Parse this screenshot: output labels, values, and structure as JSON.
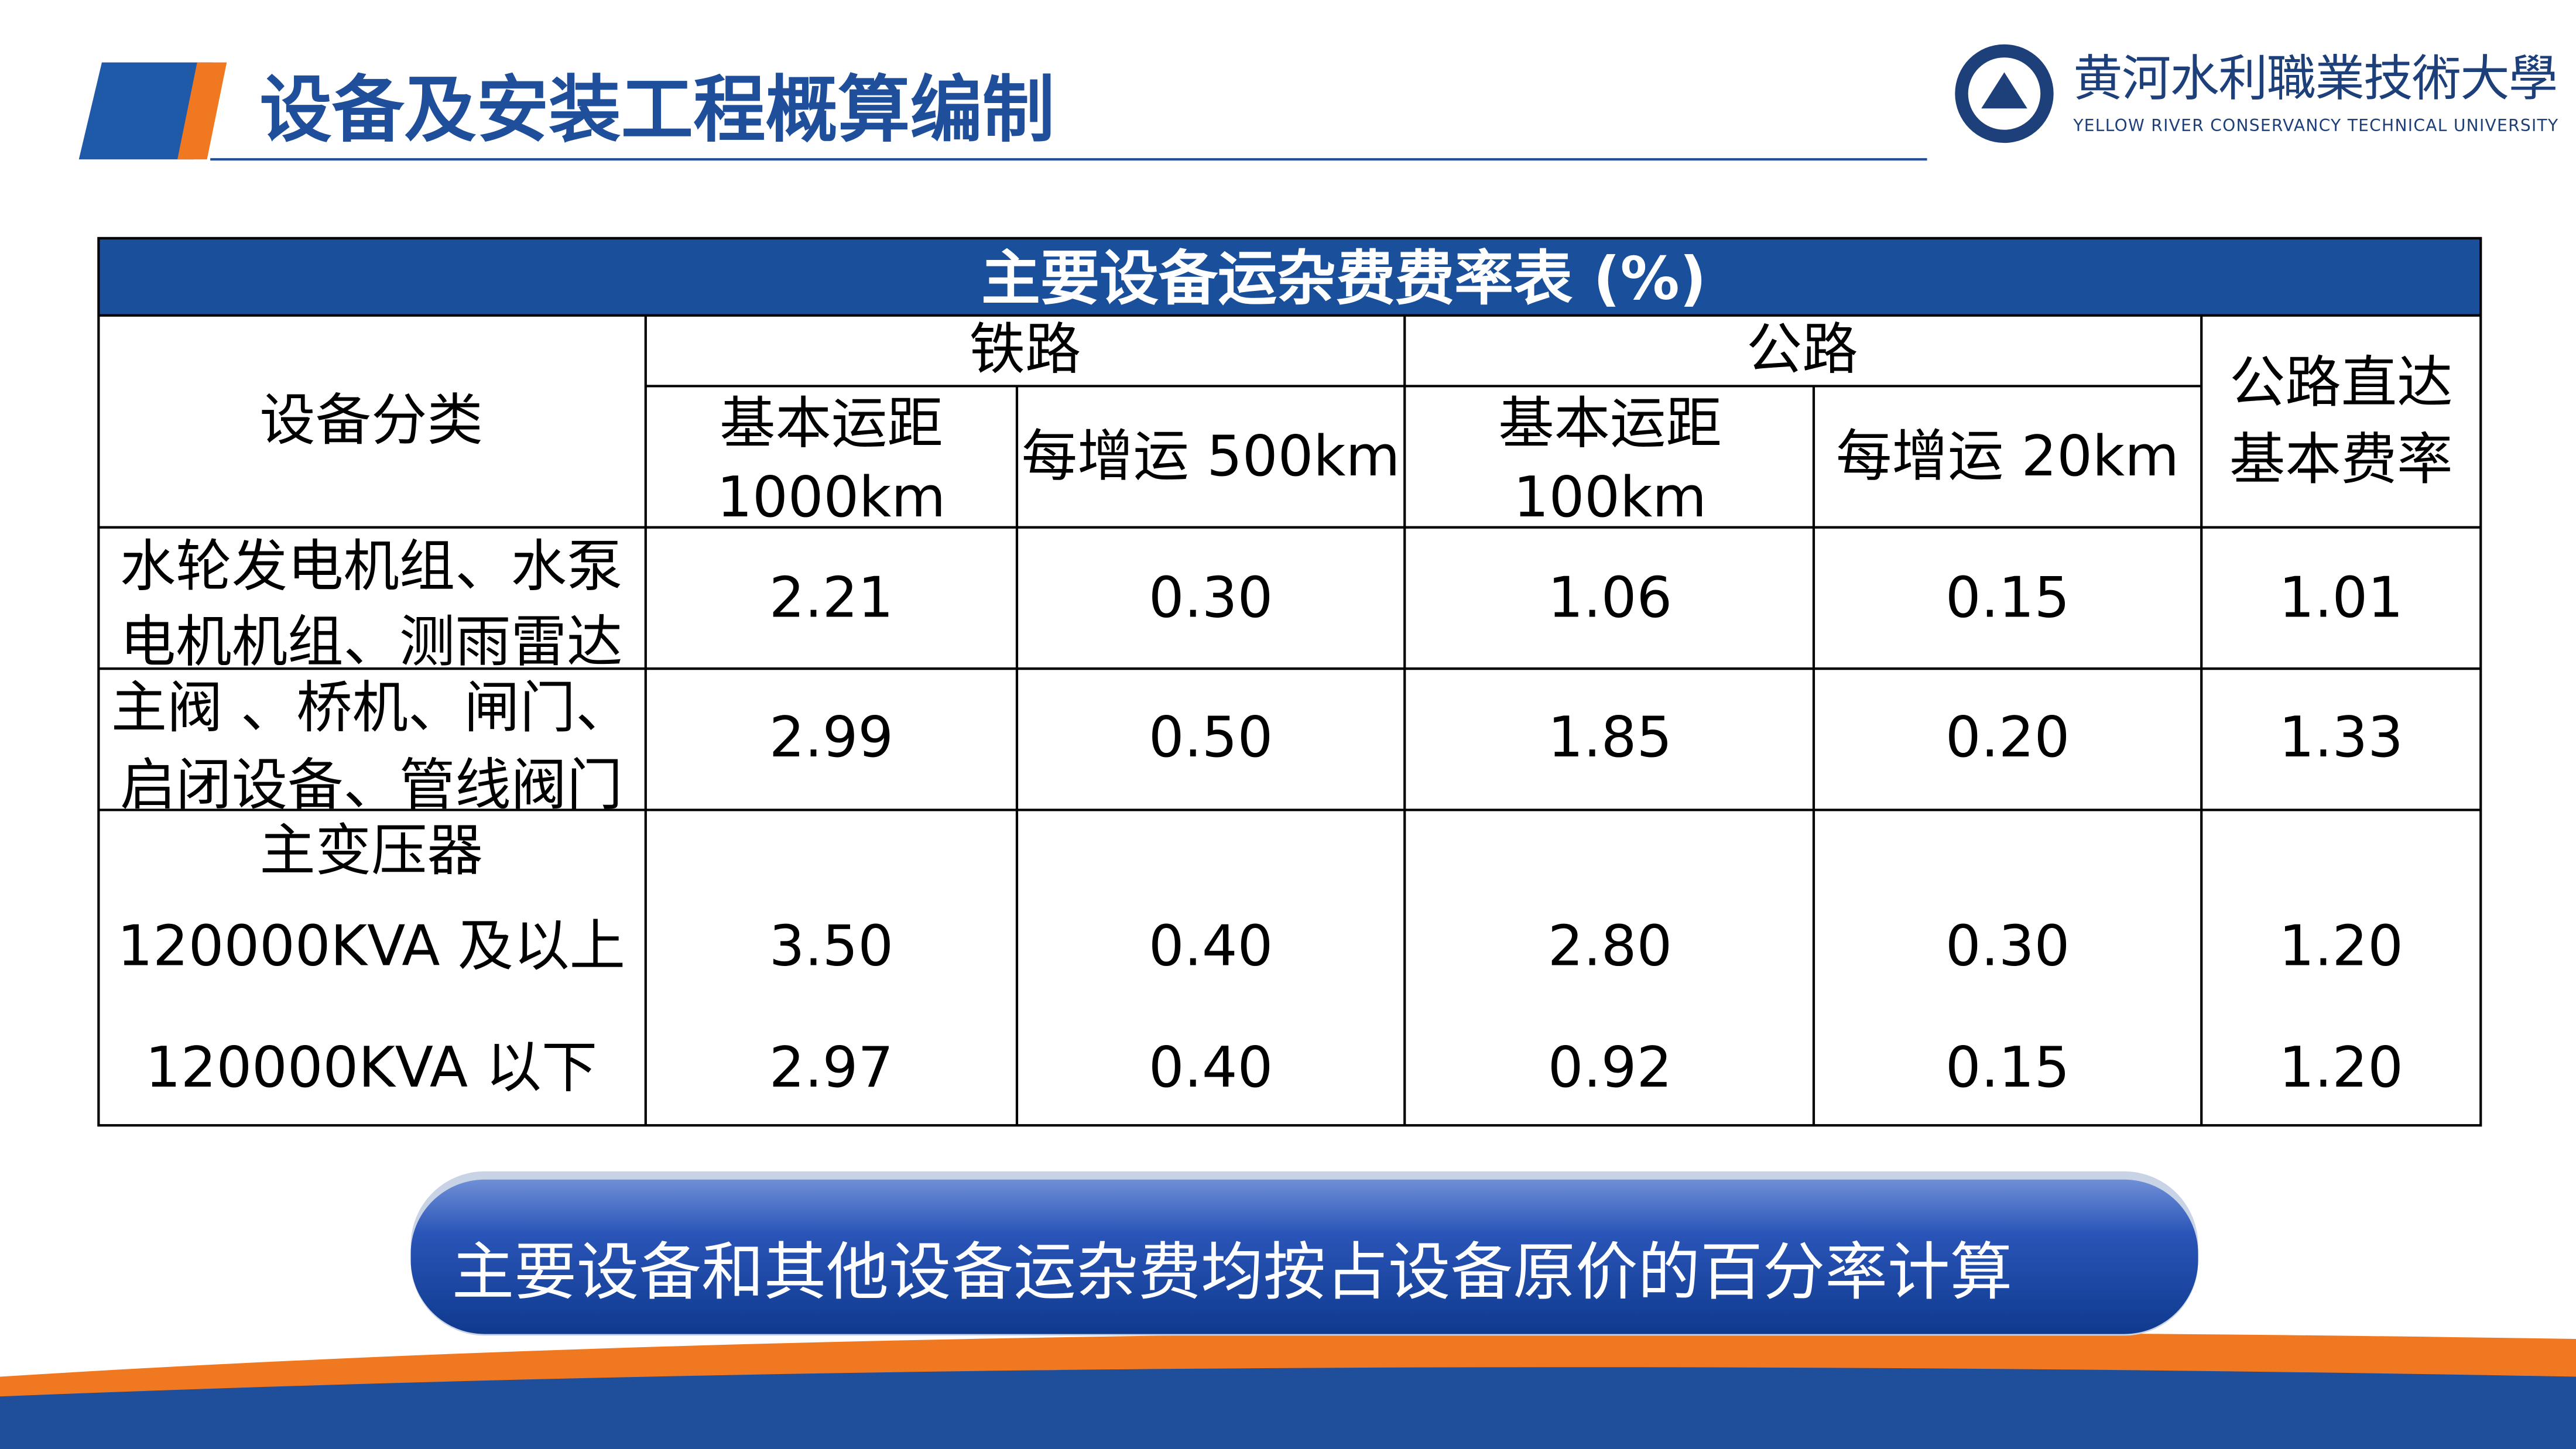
{
  "header": {
    "title": "设备及安装工程概算编制",
    "university": {
      "name_cn": "黄河水利職業技術大學",
      "name_en": "YELLOW RIVER CONSERVANCY TECHNICAL UNIVERSITY"
    }
  },
  "table": {
    "title": "主要设备运杂费费率表 (%)",
    "category": "设备分类",
    "groups": [
      {
        "label": "铁路",
        "sub": [
          [
            "基本运距",
            "1000km"
          ],
          [
            "每增运 500km"
          ]
        ]
      },
      {
        "label": "公路",
        "sub": [
          [
            "基本运距",
            "100km"
          ],
          [
            "每增运 20km"
          ]
        ]
      }
    ],
    "direct": [
      "公路直达",
      "基本费率"
    ],
    "rows": [
      {
        "label": [
          "水轮发电机组、水泵",
          "电机机组、测雨雷达"
        ],
        "values": [
          "2.21",
          "0.30",
          "1.06",
          "0.15",
          "1.01"
        ]
      },
      {
        "label": [
          "主阀 、桥机、闸门、",
          "启闭设备、管线阀门"
        ],
        "values": [
          "2.99",
          "0.50",
          "1.85",
          "0.20",
          "1.33"
        ]
      },
      {
        "label": [
          "主变压器"
        ],
        "subrows": [
          {
            "label": "120000KVA 及以上",
            "values": [
              "3.50",
              "0.40",
              "2.80",
              "0.30",
              "1.20"
            ]
          },
          {
            "label": "120000KVA 以下",
            "values": [
              "2.97",
              "0.40",
              "0.92",
              "0.15",
              "1.20"
            ]
          }
        ]
      }
    ]
  },
  "note": "主要设备和其他设备运杂费均按占设备原价的百分率计算"
}
